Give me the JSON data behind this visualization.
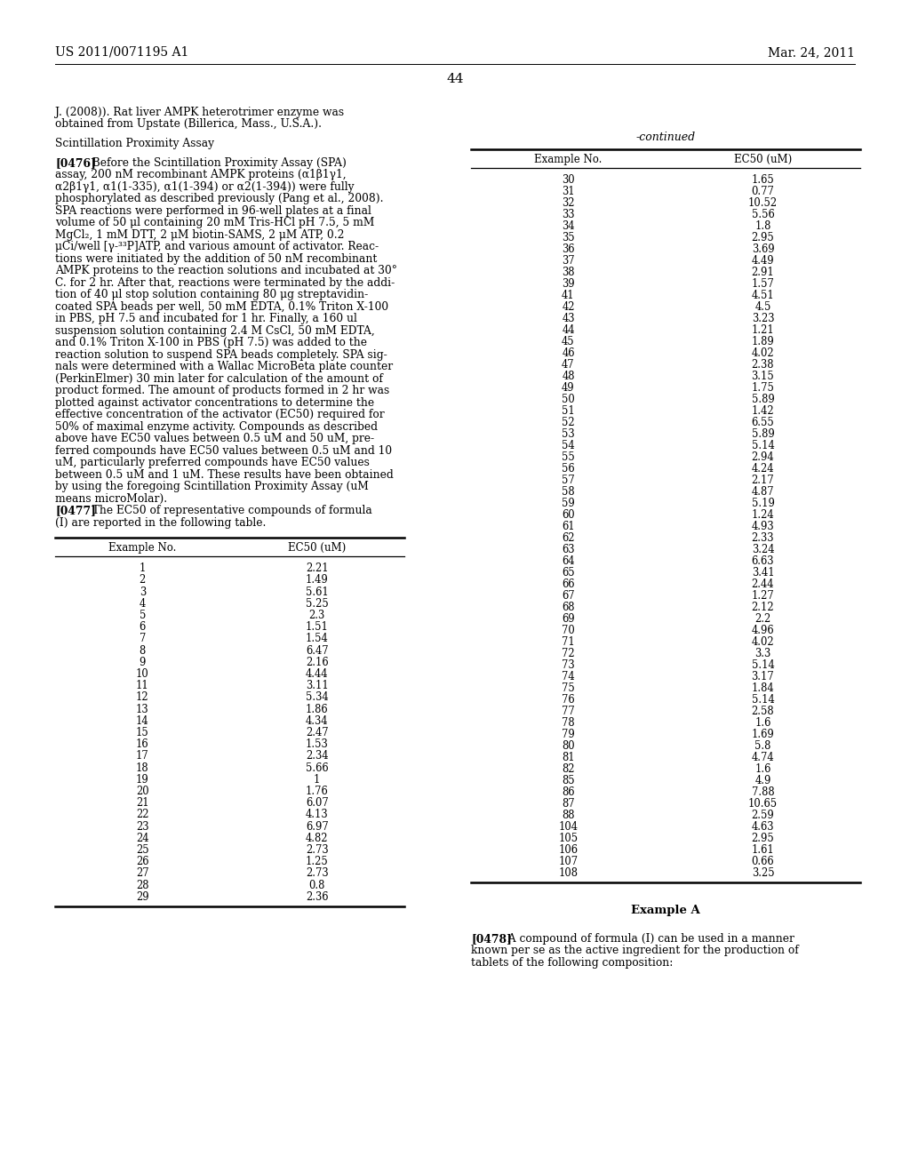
{
  "header_left": "US 2011/0071195 A1",
  "header_right": "Mar. 24, 2011",
  "page_number": "44",
  "left_col_lines": [
    "J. (2008)). Rat liver AMPK heterotrimer enzyme was",
    "obtained from Upstate (Billerica, Mass., U.S.A.).",
    "",
    "Scintillation Proximity Assay",
    "",
    "[0476]  Before the Scintillation Proximity Assay (SPA)",
    "assay, 200 nM recombinant AMPK proteins (α1β1γ1,",
    "α2β1γ1, α1(1-335), α1(1-394) or α2(1-394)) were fully",
    "phosphorylated as described previously (Pang et al., 2008).",
    "SPA reactions were performed in 96-well plates at a final",
    "volume of 50 μl containing 20 mM Tris-HCl pH 7.5, 5 mM",
    "MgCl₂, 1 mM DTT, 2 μM biotin-SAMS, 2 μM ATP, 0.2",
    "μCi/well [γ-³³P]ATP, and various amount of activator. Reac-",
    "tions were initiated by the addition of 50 nM recombinant",
    "AMPK proteins to the reaction solutions and incubated at 30°",
    "C. for 2 hr. After that, reactions were terminated by the addi-",
    "tion of 40 μl stop solution containing 80 μg streptavidin-",
    "coated SPA beads per well, 50 mM EDTA, 0.1% Triton X-100",
    "in PBS, pH 7.5 and incubated for 1 hr. Finally, a 160 ul",
    "suspension solution containing 2.4 M CsCl, 50 mM EDTA,",
    "and 0.1% Triton X-100 in PBS (pH 7.5) was added to the",
    "reaction solution to suspend SPA beads completely. SPA sig-",
    "nals were determined with a Wallac MicroBeta plate counter",
    "(PerkinElmer) 30 min later for calculation of the amount of",
    "product formed. The amount of products formed in 2 hr was",
    "plotted against activator concentrations to determine the",
    "effective concentration of the activator (EC50) required for",
    "50% of maximal enzyme activity. Compounds as described",
    "above have EC50 values between 0.5 uM and 50 uM, pre-",
    "ferred compounds have EC50 values between 0.5 uM and 10",
    "uM, particularly preferred compounds have EC50 values",
    "between 0.5 uM and 1 uM. These results have been obtained",
    "by using the foregoing Scintillation Proximity Assay (uM",
    "means microMolar).",
    "[0477]  The EC50 of representative compounds of formula",
    "(I) are reported in the following table."
  ],
  "bold_line_indices": [
    5,
    34
  ],
  "empty_line_indices": [
    2,
    4
  ],
  "section_title_indices": [
    3
  ],
  "left_table_header": [
    "Example No.",
    "EC50 (uM)"
  ],
  "left_table_data": [
    [
      1,
      "2.21"
    ],
    [
      2,
      "1.49"
    ],
    [
      3,
      "5.61"
    ],
    [
      4,
      "5.25"
    ],
    [
      5,
      "2.3"
    ],
    [
      6,
      "1.51"
    ],
    [
      7,
      "1.54"
    ],
    [
      8,
      "6.47"
    ],
    [
      9,
      "2.16"
    ],
    [
      10,
      "4.44"
    ],
    [
      11,
      "3.11"
    ],
    [
      12,
      "5.34"
    ],
    [
      13,
      "1.86"
    ],
    [
      14,
      "4.34"
    ],
    [
      15,
      "2.47"
    ],
    [
      16,
      "1.53"
    ],
    [
      17,
      "2.34"
    ],
    [
      18,
      "5.66"
    ],
    [
      19,
      "1"
    ],
    [
      20,
      "1.76"
    ],
    [
      21,
      "6.07"
    ],
    [
      22,
      "4.13"
    ],
    [
      23,
      "6.97"
    ],
    [
      24,
      "4.82"
    ],
    [
      25,
      "2.73"
    ],
    [
      26,
      "1.25"
    ],
    [
      27,
      "2.73"
    ],
    [
      28,
      "0.8"
    ],
    [
      29,
      "2.36"
    ]
  ],
  "right_continued_label": "-continued",
  "right_table_header": [
    "Example No.",
    "EC50 (uM)"
  ],
  "right_table_data": [
    [
      30,
      "1.65"
    ],
    [
      31,
      "0.77"
    ],
    [
      32,
      "10.52"
    ],
    [
      33,
      "5.56"
    ],
    [
      34,
      "1.8"
    ],
    [
      35,
      "2.95"
    ],
    [
      36,
      "3.69"
    ],
    [
      37,
      "4.49"
    ],
    [
      38,
      "2.91"
    ],
    [
      39,
      "1.57"
    ],
    [
      41,
      "4.51"
    ],
    [
      42,
      "4.5"
    ],
    [
      43,
      "3.23"
    ],
    [
      44,
      "1.21"
    ],
    [
      45,
      "1.89"
    ],
    [
      46,
      "4.02"
    ],
    [
      47,
      "2.38"
    ],
    [
      48,
      "3.15"
    ],
    [
      49,
      "1.75"
    ],
    [
      50,
      "5.89"
    ],
    [
      51,
      "1.42"
    ],
    [
      52,
      "6.55"
    ],
    [
      53,
      "5.89"
    ],
    [
      54,
      "5.14"
    ],
    [
      55,
      "2.94"
    ],
    [
      56,
      "4.24"
    ],
    [
      57,
      "2.17"
    ],
    [
      58,
      "4.87"
    ],
    [
      59,
      "5.19"
    ],
    [
      60,
      "1.24"
    ],
    [
      61,
      "4.93"
    ],
    [
      62,
      "2.33"
    ],
    [
      63,
      "3.24"
    ],
    [
      64,
      "6.63"
    ],
    [
      65,
      "3.41"
    ],
    [
      66,
      "2.44"
    ],
    [
      67,
      "1.27"
    ],
    [
      68,
      "2.12"
    ],
    [
      69,
      "2.2"
    ],
    [
      70,
      "4.96"
    ],
    [
      71,
      "4.02"
    ],
    [
      72,
      "3.3"
    ],
    [
      73,
      "5.14"
    ],
    [
      74,
      "3.17"
    ],
    [
      75,
      "1.84"
    ],
    [
      76,
      "5.14"
    ],
    [
      77,
      "2.58"
    ],
    [
      78,
      "1.6"
    ],
    [
      79,
      "1.69"
    ],
    [
      80,
      "5.8"
    ],
    [
      81,
      "4.74"
    ],
    [
      82,
      "1.6"
    ],
    [
      85,
      "4.9"
    ],
    [
      86,
      "7.88"
    ],
    [
      87,
      "10.65"
    ],
    [
      88,
      "2.59"
    ],
    [
      104,
      "4.63"
    ],
    [
      105,
      "2.95"
    ],
    [
      106,
      "1.61"
    ],
    [
      107,
      "0.66"
    ],
    [
      108,
      "3.25"
    ]
  ],
  "example_a_header": "Example A",
  "bottom_right_lines": [
    "[0478]  A compound of formula (I) can be used in a manner",
    "known per se as the active ingredient for the production of",
    "tablets of the following composition:"
  ]
}
